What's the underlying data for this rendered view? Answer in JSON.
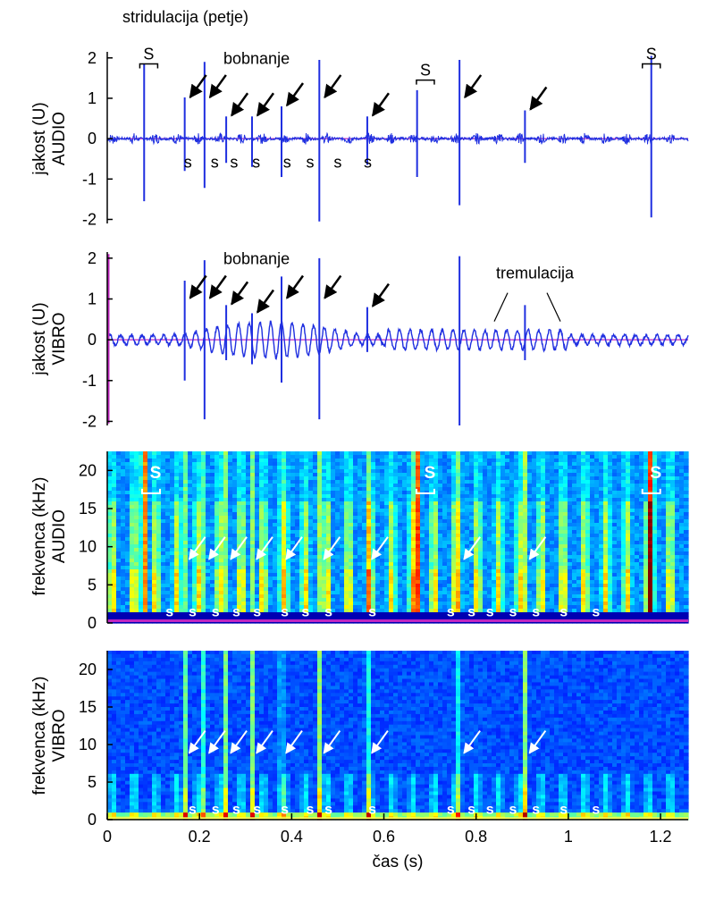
{
  "figure_title": "stridulacija (petje)",
  "colors": {
    "waveform": "#1f2fe0",
    "baseline": "#c026c0",
    "axis": "#000000"
  },
  "chart_data": [
    {
      "type": "line",
      "id": "audio-wave",
      "ylabel": "jakost (U)",
      "ylabel2": "AUDIO",
      "xlim": [
        0,
        1.26
      ],
      "ylim": [
        -2.1,
        2.15
      ],
      "yticks": [
        2,
        1,
        0,
        -1,
        -2
      ],
      "yticklabels": [
        "2",
        "1",
        "0",
        "-1",
        "-2"
      ],
      "grid": false,
      "spikes": [
        {
          "t": 0.08,
          "up": 1.85,
          "down": -1.55
        },
        {
          "t": 0.168,
          "up": 1.02,
          "down": -0.8
        },
        {
          "t": 0.211,
          "up": 1.9,
          "down": -1.22
        },
        {
          "t": 0.258,
          "up": 0.55,
          "down": -0.6
        },
        {
          "t": 0.314,
          "up": 0.55,
          "down": -0.7
        },
        {
          "t": 0.378,
          "up": 0.8,
          "down": -0.95
        },
        {
          "t": 0.46,
          "up": 1.95,
          "down": -2.05
        },
        {
          "t": 0.564,
          "up": 0.55,
          "down": -0.65
        },
        {
          "t": 0.672,
          "up": 1.2,
          "down": -0.95
        },
        {
          "t": 0.764,
          "up": 1.95,
          "down": -1.65
        },
        {
          "t": 0.906,
          "up": 0.7,
          "down": -0.6
        },
        {
          "t": 1.18,
          "up": 2.05,
          "down": -1.95
        }
      ],
      "annotations": {
        "drumming": "bobnanje",
        "s": "s",
        "S": "S"
      },
      "s_marks_t": [
        0.175,
        0.233,
        0.275,
        0.323,
        0.39,
        0.44,
        0.5,
        0.565
      ],
      "S_marks_t": [
        0.09,
        0.69,
        1.18
      ],
      "arrow_targets_t": [
        0.168,
        0.211,
        0.258,
        0.314,
        0.378,
        0.46,
        0.564,
        0.764,
        0.906
      ]
    },
    {
      "type": "line",
      "id": "vibro-wave",
      "ylabel": "jakost (U)",
      "ylabel2": "VIBRO",
      "xlim": [
        0,
        1.26
      ],
      "ylim": [
        -2.1,
        2.15
      ],
      "yticks": [
        2,
        1,
        0,
        -1,
        -2
      ],
      "yticklabels": [
        "2",
        "1",
        "0",
        "-1",
        "-2"
      ],
      "grid": false,
      "spikes": [
        {
          "t": 0.168,
          "up": 1.45,
          "down": -1.0
        },
        {
          "t": 0.211,
          "up": 1.95,
          "down": -1.95
        },
        {
          "t": 0.258,
          "up": 0.85,
          "down": -0.5
        },
        {
          "t": 0.314,
          "up": 0.65,
          "down": -0.6
        },
        {
          "t": 0.378,
          "up": 1.55,
          "down": -1.05
        },
        {
          "t": 0.46,
          "up": 2.0,
          "down": -1.95
        },
        {
          "t": 0.564,
          "up": 0.8,
          "down": -0.3
        },
        {
          "t": 0.764,
          "up": 2.05,
          "down": -2.1
        },
        {
          "t": 0.906,
          "up": 0.85,
          "down": -0.5
        }
      ],
      "annotations": {
        "drumming": "bobnanje",
        "tremulation": "tremulacija"
      },
      "arrow_targets_t": [
        0.168,
        0.211,
        0.258,
        0.314,
        0.378,
        0.46,
        0.564
      ]
    },
    {
      "type": "heatmap",
      "id": "audio-spec",
      "ylabel": "frekvenca (kHz)",
      "ylabel2": "AUDIO",
      "xlim": [
        0,
        1.26
      ],
      "ylim": [
        0,
        22.5
      ],
      "yticks": [
        20,
        15,
        10,
        5,
        0
      ],
      "yticklabels": [
        "20",
        "15",
        "10",
        "5",
        "0"
      ],
      "colormap": "jet",
      "stridulation_t": [
        0.08,
        0.672,
        1.18
      ],
      "drum_t": [
        0.168,
        0.211,
        0.258,
        0.314,
        0.378,
        0.46,
        0.564,
        0.764,
        0.906
      ],
      "s_marks_t": [
        0.135,
        0.185,
        0.235,
        0.28,
        0.325,
        0.385,
        0.43,
        0.48,
        0.575,
        0.745,
        0.79,
        0.83,
        0.88,
        0.93,
        0.99,
        1.06
      ],
      "S_marks_t": [
        0.095,
        0.69,
        1.18
      ],
      "arrow_targets_t": [
        0.168,
        0.211,
        0.258,
        0.314,
        0.378,
        0.46,
        0.564,
        0.764,
        0.906
      ],
      "annotations": {
        "s": "s",
        "S": "S"
      }
    },
    {
      "type": "heatmap",
      "id": "vibro-spec",
      "ylabel": "frekvenca (kHz)",
      "ylabel2": "VIBRO",
      "xlabel": "čas (s)",
      "xlim": [
        0,
        1.26
      ],
      "ylim": [
        0,
        22.5
      ],
      "yticks": [
        20,
        15,
        10,
        5,
        0
      ],
      "yticklabels": [
        "20",
        "15",
        "10",
        "5",
        "0"
      ],
      "xticks": [
        0,
        0.2,
        0.4,
        0.6,
        0.8,
        1,
        1.2
      ],
      "xticklabels": [
        "0",
        "0.2",
        "0.4",
        "0.6",
        "0.8",
        "1",
        "1.2"
      ],
      "colormap": "jet",
      "drum_t": [
        0.168,
        0.211,
        0.258,
        0.314,
        0.378,
        0.46,
        0.564,
        0.764,
        0.906
      ],
      "s_marks_t": [
        0.185,
        0.235,
        0.28,
        0.325,
        0.385,
        0.44,
        0.48,
        0.575,
        0.745,
        0.79,
        0.83,
        0.88,
        0.93,
        0.99,
        1.06
      ],
      "arrow_targets_t": [
        0.168,
        0.211,
        0.258,
        0.314,
        0.378,
        0.46,
        0.564,
        0.764,
        0.906
      ],
      "annotations": {
        "s": "s"
      }
    }
  ]
}
